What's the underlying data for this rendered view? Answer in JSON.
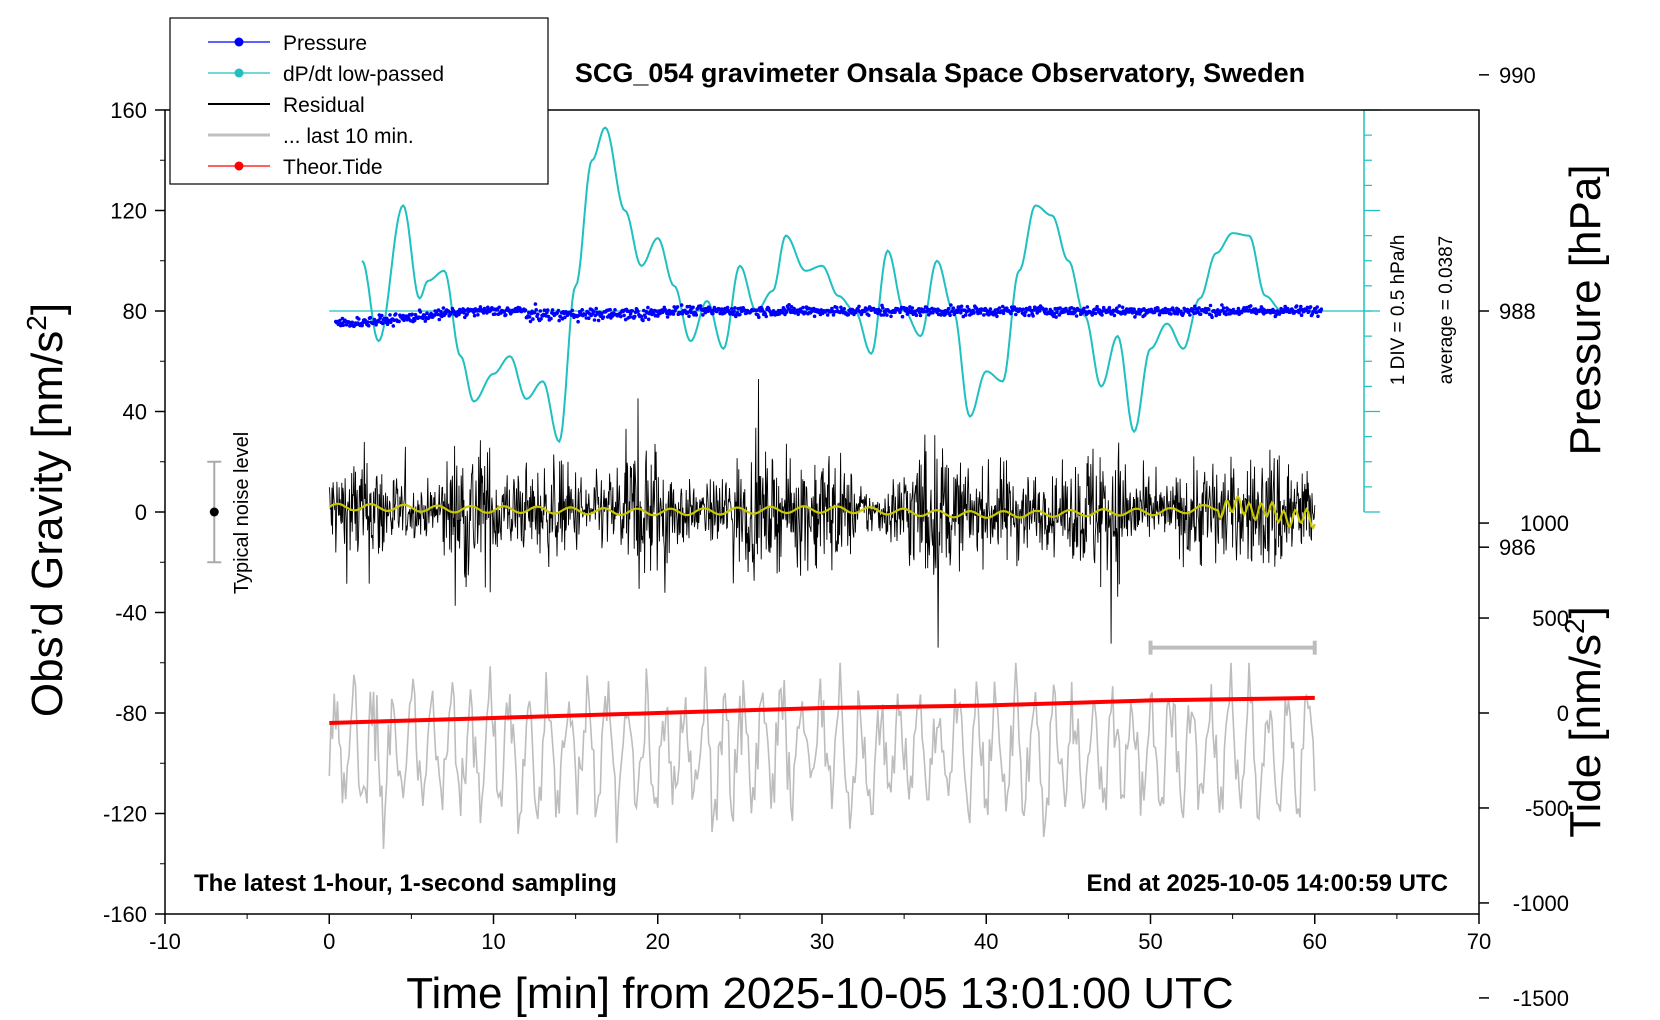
{
  "chart_data": {
    "type": "line",
    "title": "SCG_054 gravimeter Onsala Space Observatory, Sweden",
    "xlabel": "Time [min] from 2025-10-05 13:01:00 UTC",
    "ylabel_left_main": "Obs’d Gravity [nm/s",
    "ylabel_left_sup": "2",
    "ylabel_left_end": "]",
    "ylabel_right_pressure": "Pressure [hPa]",
    "ylabel_right_tide_main": "Tide [nm/s",
    "ylabel_right_tide_sup": "2",
    "ylabel_right_tide_end": "]",
    "xlim": [
      -10,
      70
    ],
    "ylim": [
      -160,
      160
    ],
    "x_ticks": [
      "-10",
      "0",
      "10",
      "20",
      "30",
      "40",
      "50",
      "60",
      "70"
    ],
    "y_ticks": [
      "160",
      "120",
      "80",
      "40",
      "0",
      "-40",
      "-80",
      "-120",
      "-160"
    ],
    "pressure_ticks": [
      "990",
      "988",
      "986"
    ],
    "tide_ticks": [
      "1000",
      "500",
      "0",
      "-500",
      "-1000",
      "-1500"
    ],
    "grid": false,
    "legend_position": "top-left",
    "legend": [
      {
        "label": "Pressure",
        "color": "#0000ff",
        "marker": true
      },
      {
        "label": "dP/dt low-passed",
        "color": "#20c0c0",
        "marker": true
      },
      {
        "label": "Residual",
        "color": "#000000",
        "marker": false
      },
      {
        "label": "... last 10 min.",
        "color": "#c0c0c0",
        "marker": false
      },
      {
        "label": "Theor.Tide",
        "color": "#ff0000",
        "marker": true
      }
    ],
    "annotations": {
      "bottom_left": "The latest 1-hour, 1-second sampling",
      "bottom_right": "End at 2025-10-05 14:00:59 UTC",
      "noise": "Typical noise level",
      "dpdt_scale": "1 DIV = 0.5 hPa/h",
      "dpdt_average": "average = 0.0387"
    },
    "series": [
      {
        "name": "Pressure",
        "unit": "hPa",
        "axis": "right-upper",
        "x": [
          0.5,
          10,
          20,
          30,
          40,
          50,
          60
        ],
        "y": [
          987.9,
          988.0,
          988.0,
          988.0,
          988.0,
          988.0,
          988.0
        ]
      },
      {
        "name": "dP/dt low-passed",
        "unit": "nm/s2-scaled",
        "x": [
          2,
          3,
          4.5,
          5.5,
          6,
          7,
          8,
          8.8,
          10,
          11,
          12,
          13,
          14,
          15,
          16,
          16.8,
          18,
          19,
          20,
          21,
          22,
          23,
          24,
          25,
          26,
          27,
          27.8,
          29,
          30,
          31,
          32,
          33,
          34,
          35,
          36,
          37,
          38,
          39,
          40,
          41,
          42,
          43,
          44,
          45,
          46,
          47,
          48,
          49,
          50,
          51,
          52,
          53,
          54,
          55,
          56,
          57,
          58,
          60
        ],
        "y": [
          100,
          68,
          122,
          85,
          92,
          96,
          62,
          44,
          55,
          62,
          45,
          52,
          28,
          90,
          140,
          153,
          120,
          98,
          109,
          90,
          68,
          84,
          65,
          98,
          80,
          88,
          110,
          96,
          98,
          86,
          80,
          63,
          104,
          80,
          70,
          100,
          80,
          38,
          56,
          52,
          96,
          122,
          118,
          100,
          78,
          50,
          70,
          32,
          65,
          75,
          65,
          85,
          103,
          111,
          110,
          86,
          80,
          80
        ]
      },
      {
        "name": "Residual",
        "unit": "nm/s2",
        "x": [
          0,
          60
        ],
        "y": [
          0,
          0
        ],
        "range": [
          -60,
          67
        ]
      },
      {
        "name": "Residual low-passed",
        "unit": "nm/s2",
        "x": [
          0,
          10,
          20,
          30,
          40,
          50,
          55,
          60
        ],
        "y": [
          2,
          1,
          0,
          1,
          -1,
          0,
          2,
          -3
        ]
      },
      {
        "name": "... last 10 min.",
        "unit": "nm/s2",
        "x": [
          50,
          60
        ],
        "y": [
          -95,
          -95
        ],
        "range": [
          -140,
          -60
        ]
      },
      {
        "name": "Theor.Tide",
        "unit": "nm/s2",
        "x": [
          0,
          10,
          20,
          30,
          40,
          50,
          60
        ],
        "y": [
          -84,
          -82,
          -80,
          -78,
          -77,
          -75,
          -74
        ]
      }
    ],
    "noise_bar": {
      "x": -7,
      "center": 0,
      "half_range": 20
    },
    "last10_bar": {
      "x": [
        50,
        60
      ],
      "y": -54
    }
  }
}
